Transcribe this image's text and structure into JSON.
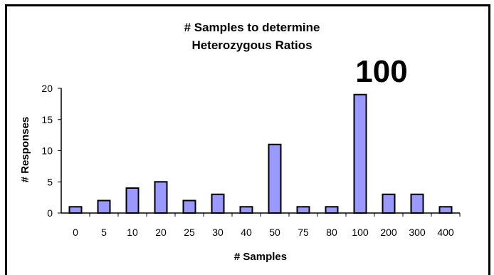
{
  "chart_data": {
    "type": "bar",
    "title_line1": "# Samples to determine",
    "title_line2": "Heterozygous  Ratios",
    "annotation": "100",
    "xlabel": "# Samples",
    "ylabel": "# Responses",
    "categories": [
      "0",
      "5",
      "10",
      "20",
      "25",
      "30",
      "40",
      "50",
      "75",
      "80",
      "100",
      "200",
      "300",
      "400"
    ],
    "values": [
      1,
      2,
      4,
      5,
      2,
      3,
      1,
      11,
      1,
      1,
      19,
      3,
      3,
      1
    ],
    "ylim": [
      0,
      20
    ],
    "yticks": [
      "0",
      "5",
      "10",
      "15",
      "20"
    ],
    "grid": false,
    "bar_color": "#9999ff"
  }
}
